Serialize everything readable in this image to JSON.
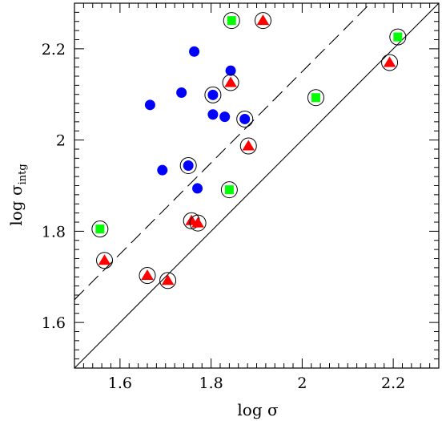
{
  "chart_data": {
    "type": "scatter",
    "xlabel": "log σ",
    "ylabel_main": "log σ",
    "ylabel_sub": "intg",
    "xlim": [
      1.5,
      2.3
    ],
    "ylim": [
      1.5,
      2.3
    ],
    "x_ticks": [
      1.6,
      1.8,
      2,
      2.2
    ],
    "y_ticks": [
      1.6,
      1.8,
      2,
      2.2
    ],
    "x_tick_labels": [
      "1.6",
      "1.8",
      "2",
      "2.2"
    ],
    "y_tick_labels": [
      "1.6",
      "1.8",
      "2",
      "2.2"
    ],
    "grid": false,
    "lines": [
      {
        "style": "solid",
        "slope": 1,
        "intercept": 0
      },
      {
        "style": "dashed",
        "slope": 1,
        "intercept": 0.15
      }
    ],
    "colors": {
      "circle": "#0000ff",
      "triangle": "#ff0000",
      "square": "#00ff00"
    },
    "series": [
      {
        "marker": "circle",
        "points": [
          {
            "x": 1.666,
            "y": 2.077,
            "ring": false
          },
          {
            "x": 1.693,
            "y": 1.934,
            "ring": false
          },
          {
            "x": 1.735,
            "y": 2.104,
            "ring": false
          },
          {
            "x": 1.75,
            "y": 1.944,
            "ring": true
          },
          {
            "x": 1.763,
            "y": 2.194,
            "ring": false
          },
          {
            "x": 1.77,
            "y": 1.894,
            "ring": false
          },
          {
            "x": 1.804,
            "y": 2.056,
            "ring": false
          },
          {
            "x": 1.804,
            "y": 2.099,
            "ring": true
          },
          {
            "x": 1.83,
            "y": 2.051,
            "ring": false
          },
          {
            "x": 1.843,
            "y": 2.152,
            "ring": false
          },
          {
            "x": 1.874,
            "y": 2.046,
            "ring": true
          }
        ]
      },
      {
        "marker": "triangle",
        "points": [
          {
            "x": 1.566,
            "y": 1.736,
            "ring": true
          },
          {
            "x": 1.66,
            "y": 1.703,
            "ring": true
          },
          {
            "x": 1.705,
            "y": 1.692,
            "ring": true
          },
          {
            "x": 1.757,
            "y": 1.823,
            "ring": true
          },
          {
            "x": 1.771,
            "y": 1.818,
            "ring": true
          },
          {
            "x": 1.843,
            "y": 2.126,
            "ring": true
          },
          {
            "x": 1.882,
            "y": 1.987,
            "ring": true
          },
          {
            "x": 1.914,
            "y": 2.262,
            "ring": true
          },
          {
            "x": 2.192,
            "y": 2.17,
            "ring": true
          }
        ]
      },
      {
        "marker": "square",
        "points": [
          {
            "x": 1.556,
            "y": 1.805,
            "ring": true
          },
          {
            "x": 1.84,
            "y": 1.891,
            "ring": true
          },
          {
            "x": 1.845,
            "y": 2.262,
            "ring": true
          },
          {
            "x": 2.03,
            "y": 2.093,
            "ring": true
          },
          {
            "x": 2.21,
            "y": 2.226,
            "ring": true
          }
        ]
      }
    ]
  }
}
